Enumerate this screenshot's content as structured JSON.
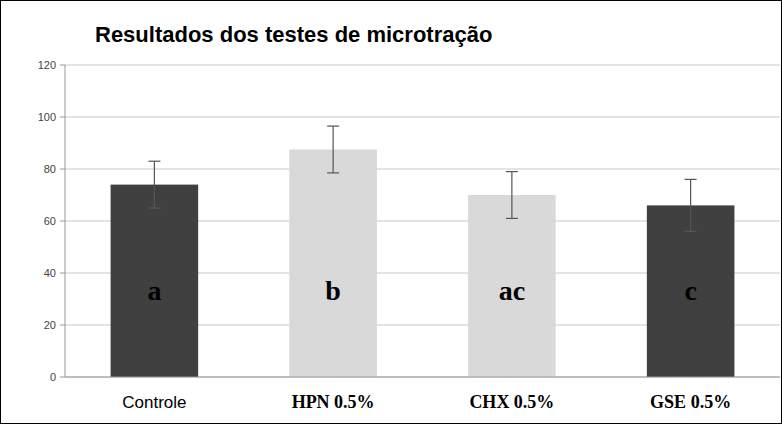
{
  "chart_data": {
    "type": "bar",
    "title": "Resultados dos testes de microtração",
    "categories": [
      "Controle",
      "HPN 0.5%",
      "CHX 0.5%",
      "GSE 0.5%"
    ],
    "values": [
      74,
      87.5,
      70,
      66
    ],
    "errors": [
      9,
      9,
      9,
      10
    ],
    "colors": [
      "#404040",
      "#d9d9d9",
      "#d9d9d9",
      "#404040"
    ],
    "annotations": [
      "a",
      "b",
      "ac",
      "c"
    ],
    "ylim": [
      0,
      120
    ],
    "yticks": [
      0,
      20,
      40,
      60,
      80,
      100,
      120
    ],
    "grid": true
  }
}
